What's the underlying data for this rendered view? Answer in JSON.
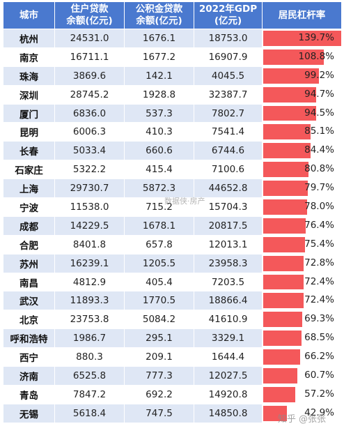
{
  "headers": {
    "city": "城市",
    "housing_loan": [
      "住户贷款",
      "余额(亿元)"
    ],
    "fund_loan": [
      "公积金贷款",
      "余额(亿元)"
    ],
    "gdp": [
      "2022年GDP",
      "(亿元)"
    ],
    "leverage": "居民杠杆率"
  },
  "rows": [
    {
      "city": "杭州",
      "housing_loan": "24531.0",
      "fund_loan": "1676.1",
      "gdp": "18753.0",
      "leverage": "139.7%",
      "leverage_value": 139.7
    },
    {
      "city": "南京",
      "housing_loan": "16711.1",
      "fund_loan": "1677.2",
      "gdp": "16907.9",
      "leverage": "108.8%",
      "leverage_value": 108.8
    },
    {
      "city": "珠海",
      "housing_loan": "3869.6",
      "fund_loan": "142.1",
      "gdp": "4045.5",
      "leverage": "99.2%",
      "leverage_value": 99.2
    },
    {
      "city": "深圳",
      "housing_loan": "28745.2",
      "fund_loan": "1928.8",
      "gdp": "32387.7",
      "leverage": "94.7%",
      "leverage_value": 94.7
    },
    {
      "city": "厦门",
      "housing_loan": "6836.0",
      "fund_loan": "537.3",
      "gdp": "7802.7",
      "leverage": "94.5%",
      "leverage_value": 94.5
    },
    {
      "city": "昆明",
      "housing_loan": "6006.3",
      "fund_loan": "410.3",
      "gdp": "7541.4",
      "leverage": "85.1%",
      "leverage_value": 85.1
    },
    {
      "city": "长春",
      "housing_loan": "5033.4",
      "fund_loan": "660.6",
      "gdp": "6744.6",
      "leverage": "84.4%",
      "leverage_value": 84.4
    },
    {
      "city": "石家庄",
      "housing_loan": "5322.2",
      "fund_loan": "415.4",
      "gdp": "7100.6",
      "leverage": "80.8%",
      "leverage_value": 80.8
    },
    {
      "city": "上海",
      "housing_loan": "29730.7",
      "fund_loan": "5872.3",
      "gdp": "44652.8",
      "leverage": "79.7%",
      "leverage_value": 79.7
    },
    {
      "city": "宁波",
      "housing_loan": "11538.0",
      "fund_loan": "715.2",
      "gdp": "15704.3",
      "leverage": "78.0%",
      "leverage_value": 78.0
    },
    {
      "city": "成都",
      "housing_loan": "14229.5",
      "fund_loan": "1678.1",
      "gdp": "20817.5",
      "leverage": "76.4%",
      "leverage_value": 76.4
    },
    {
      "city": "合肥",
      "housing_loan": "8401.8",
      "fund_loan": "657.8",
      "gdp": "12013.1",
      "leverage": "75.4%",
      "leverage_value": 75.4
    },
    {
      "city": "苏州",
      "housing_loan": "16239.1",
      "fund_loan": "1205.5",
      "gdp": "23958.3",
      "leverage": "72.8%",
      "leverage_value": 72.8
    },
    {
      "city": "南昌",
      "housing_loan": "4812.9",
      "fund_loan": "405.4",
      "gdp": "7203.5",
      "leverage": "72.4%",
      "leverage_value": 72.4
    },
    {
      "city": "武汉",
      "housing_loan": "11893.3",
      "fund_loan": "1770.5",
      "gdp": "18866.4",
      "leverage": "72.4%",
      "leverage_value": 72.4
    },
    {
      "city": "北京",
      "housing_loan": "23753.8",
      "fund_loan": "5084.2",
      "gdp": "41610.9",
      "leverage": "69.3%",
      "leverage_value": 69.3
    },
    {
      "city": "呼和浩特",
      "housing_loan": "1986.7",
      "fund_loan": "295.1",
      "gdp": "3329.1",
      "leverage": "68.5%",
      "leverage_value": 68.5
    },
    {
      "city": "西宁",
      "housing_loan": "880.3",
      "fund_loan": "209.1",
      "gdp": "1644.4",
      "leverage": "66.2%",
      "leverage_value": 66.2
    },
    {
      "city": "济南",
      "housing_loan": "6525.8",
      "fund_loan": "777.3",
      "gdp": "12027.5",
      "leverage": "60.7%",
      "leverage_value": 60.7
    },
    {
      "city": "青岛",
      "housing_loan": "7847.2",
      "fund_loan": "692.2",
      "gdp": "14920.8",
      "leverage": "57.2%",
      "leverage_value": 57.2
    },
    {
      "city": "无锡",
      "housing_loan": "5618.4",
      "fund_loan": "747.5",
      "gdp": "14850.8",
      "leverage": "42.9%",
      "leverage_value": 42.9
    }
  ],
  "bar_max_value": 139.7,
  "colors": {
    "header_bg": "#4a79cf",
    "row_alt": "#dfe7f5",
    "bar": "#f4585a"
  },
  "watermark_center": "数据侠·房产",
  "watermark_corner": "知乎 @张张"
}
